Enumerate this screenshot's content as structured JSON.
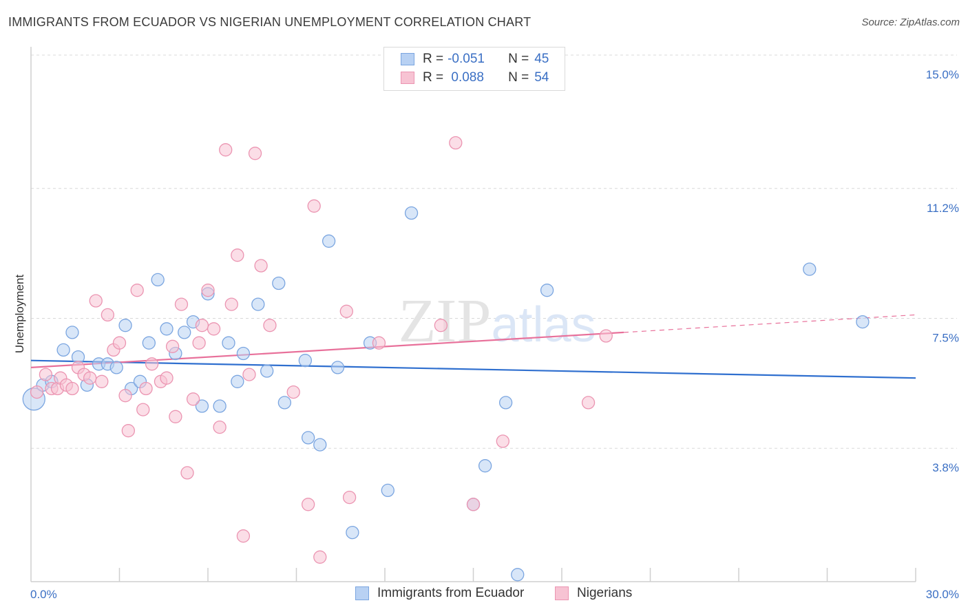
{
  "title": "IMMIGRANTS FROM ECUADOR VS NIGERIAN UNEMPLOYMENT CORRELATION CHART",
  "source": "Source: ZipAtlas.com",
  "watermark": "ZIPatlas",
  "colors": {
    "blue_fill": "#b8d1f3",
    "blue_stroke": "#7aa5e0",
    "blue_line": "#2f6fcf",
    "pink_fill": "#f7c3d3",
    "pink_stroke": "#eb94b1",
    "pink_line": "#e8709a",
    "tick_text": "#3a6fc4",
    "grid": "#d8d8d8"
  },
  "legend": {
    "rows": [
      {
        "r_label": "R =",
        "r_value": "-0.051",
        "n_label": "N =",
        "n_value": "45"
      },
      {
        "r_label": "R =",
        "r_value": " 0.088",
        "n_label": "N =",
        "n_value": "54"
      }
    ]
  },
  "bottom_legend": {
    "series1": "Immigrants from Ecuador",
    "series2": "Nigerians"
  },
  "chart_data": {
    "type": "scatter",
    "ylabel": "Unemployment",
    "xlim": [
      0,
      30
    ],
    "ylim": [
      0,
      15
    ],
    "y_ticks": [
      {
        "value": 3.8,
        "label": "3.8%"
      },
      {
        "value": 7.5,
        "label": "7.5%"
      },
      {
        "value": 11.2,
        "label": "11.2%"
      },
      {
        "value": 15.0,
        "label": "15.0%"
      }
    ],
    "x_tick_labels": [
      {
        "value": 0,
        "label": "0.0%"
      },
      {
        "value": 30,
        "label": "30.0%"
      }
    ],
    "x_minor_ticks": [
      3,
      6,
      9,
      12,
      15,
      18,
      21,
      24,
      27,
      30
    ],
    "series": [
      {
        "name": "Immigrants from Ecuador",
        "color": "#b8d1f3",
        "trend": {
          "x": [
            0,
            30
          ],
          "y": [
            6.3,
            5.8
          ],
          "dashed_from": null
        },
        "points": [
          [
            0.1,
            5.2,
            16
          ],
          [
            0.4,
            5.6,
            9
          ],
          [
            0.7,
            5.7,
            9
          ],
          [
            1.1,
            6.6,
            9
          ],
          [
            1.4,
            7.1,
            9
          ],
          [
            1.6,
            6.4,
            9
          ],
          [
            1.9,
            5.6,
            9
          ],
          [
            2.3,
            6.2,
            9
          ],
          [
            2.6,
            6.2,
            9
          ],
          [
            2.9,
            6.1,
            9
          ],
          [
            3.2,
            7.3,
            9
          ],
          [
            3.4,
            5.5,
            9
          ],
          [
            3.7,
            5.7,
            9
          ],
          [
            4.0,
            6.8,
            9
          ],
          [
            4.3,
            8.6,
            9
          ],
          [
            4.6,
            7.2,
            9
          ],
          [
            4.9,
            6.5,
            9
          ],
          [
            5.2,
            7.1,
            9
          ],
          [
            5.5,
            7.4,
            9
          ],
          [
            5.8,
            5.0,
            9
          ],
          [
            6.0,
            8.2,
            9
          ],
          [
            6.4,
            5.0,
            9
          ],
          [
            6.7,
            6.8,
            9
          ],
          [
            7.0,
            5.7,
            9
          ],
          [
            7.2,
            6.5,
            9
          ],
          [
            7.7,
            7.9,
            9
          ],
          [
            8.0,
            6.0,
            9
          ],
          [
            8.4,
            8.5,
            9
          ],
          [
            8.6,
            5.1,
            9
          ],
          [
            9.3,
            6.3,
            9
          ],
          [
            9.4,
            4.1,
            9
          ],
          [
            9.8,
            3.9,
            9
          ],
          [
            10.1,
            9.7,
            9
          ],
          [
            10.4,
            6.1,
            9
          ],
          [
            10.9,
            1.4,
            9
          ],
          [
            11.5,
            6.8,
            9
          ],
          [
            12.1,
            2.6,
            9
          ],
          [
            12.9,
            10.5,
            9
          ],
          [
            15.0,
            2.2,
            9
          ],
          [
            15.4,
            3.3,
            9
          ],
          [
            16.1,
            5.1,
            9
          ],
          [
            16.5,
            0.2,
            9
          ],
          [
            17.5,
            8.3,
            9
          ],
          [
            26.4,
            8.9,
            9
          ],
          [
            28.2,
            7.4,
            9
          ]
        ]
      },
      {
        "name": "Nigerians",
        "color": "#f7c3d3",
        "trend": {
          "x": [
            0,
            20.1,
            30
          ],
          "y": [
            6.1,
            7.1,
            7.6
          ],
          "dashed_from": 20.1
        },
        "points": [
          [
            0.2,
            5.4,
            9
          ],
          [
            0.5,
            5.9,
            9
          ],
          [
            0.7,
            5.5,
            9
          ],
          [
            0.9,
            5.5,
            9
          ],
          [
            1.0,
            5.8,
            9
          ],
          [
            1.2,
            5.6,
            9
          ],
          [
            1.4,
            5.5,
            9
          ],
          [
            1.6,
            6.1,
            9
          ],
          [
            1.8,
            5.9,
            9
          ],
          [
            2.0,
            5.8,
            9
          ],
          [
            2.2,
            8.0,
            9
          ],
          [
            2.4,
            5.7,
            9
          ],
          [
            2.6,
            7.6,
            9
          ],
          [
            2.8,
            6.6,
            9
          ],
          [
            3.0,
            6.8,
            9
          ],
          [
            3.2,
            5.3,
            9
          ],
          [
            3.3,
            4.3,
            9
          ],
          [
            3.6,
            8.3,
            9
          ],
          [
            3.8,
            4.9,
            9
          ],
          [
            3.9,
            5.5,
            9
          ],
          [
            4.1,
            6.2,
            9
          ],
          [
            4.4,
            5.7,
            9
          ],
          [
            4.6,
            5.8,
            9
          ],
          [
            4.8,
            6.7,
            9
          ],
          [
            4.9,
            4.7,
            9
          ],
          [
            5.1,
            7.9,
            9
          ],
          [
            5.3,
            3.1,
            9
          ],
          [
            5.5,
            5.2,
            9
          ],
          [
            5.7,
            6.8,
            9
          ],
          [
            5.8,
            7.3,
            9
          ],
          [
            6.0,
            8.3,
            9
          ],
          [
            6.2,
            7.2,
            9
          ],
          [
            6.4,
            4.4,
            9
          ],
          [
            6.6,
            12.3,
            9
          ],
          [
            6.8,
            7.9,
            9
          ],
          [
            7.0,
            9.3,
            9
          ],
          [
            7.2,
            1.3,
            9
          ],
          [
            7.4,
            5.9,
            9
          ],
          [
            7.6,
            12.2,
            9
          ],
          [
            7.8,
            9.0,
            9
          ],
          [
            8.1,
            7.3,
            9
          ],
          [
            8.9,
            5.4,
            9
          ],
          [
            9.4,
            2.2,
            9
          ],
          [
            9.6,
            10.7,
            9
          ],
          [
            9.8,
            0.7,
            9
          ],
          [
            10.7,
            7.7,
            9
          ],
          [
            10.8,
            2.4,
            9
          ],
          [
            11.8,
            6.8,
            9
          ],
          [
            13.9,
            7.3,
            9
          ],
          [
            14.4,
            12.5,
            9
          ],
          [
            15.0,
            2.2,
            9
          ],
          [
            16.0,
            4.0,
            9
          ],
          [
            18.9,
            5.1,
            9
          ],
          [
            19.5,
            7.0,
            9
          ]
        ]
      }
    ]
  }
}
